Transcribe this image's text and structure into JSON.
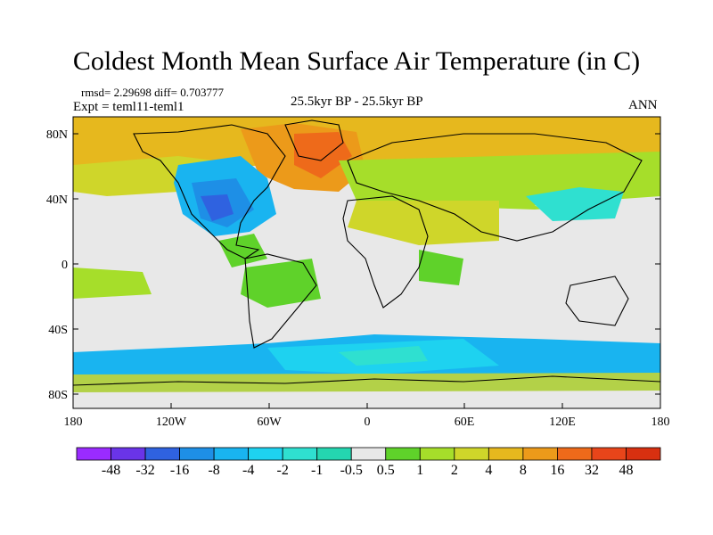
{
  "title": "Coldest Month Mean Surface Air Temperature (in C)",
  "stats": "rmsd= 2.29698 diff= 0.703777",
  "experiment": "Expt = teml11-teml1",
  "period": "25.5kyr BP - 25.5kyr BP",
  "season": "ANN",
  "axes": {
    "y_ticks": [
      "80N",
      "40N",
      "0",
      "40S",
      "80S"
    ],
    "x_ticks": [
      "180",
      "120W",
      "60W",
      "0",
      "60E",
      "120E",
      "180"
    ]
  },
  "colorbar": {
    "labels": [
      "-48",
      "-32",
      "-16",
      "-8",
      "-4",
      "-2",
      "-1",
      "-0.5",
      "0.5",
      "1",
      "2",
      "4",
      "8",
      "16",
      "32",
      "48"
    ],
    "colors": [
      "#9a2bff",
      "#6a34e8",
      "#2f62e0",
      "#1e8fe6",
      "#19b4f0",
      "#1ed2f0",
      "#2fe0d0",
      "#24d6b0",
      "#e8e8e8",
      "#5fd22a",
      "#a6de2a",
      "#cfd62a",
      "#e6b81e",
      "#ec9a1a",
      "#ee6a1a",
      "#e8451a",
      "#d83010"
    ]
  },
  "map_colors": {
    "background": "#e8e8e8",
    "land_outline": "#000000"
  }
}
